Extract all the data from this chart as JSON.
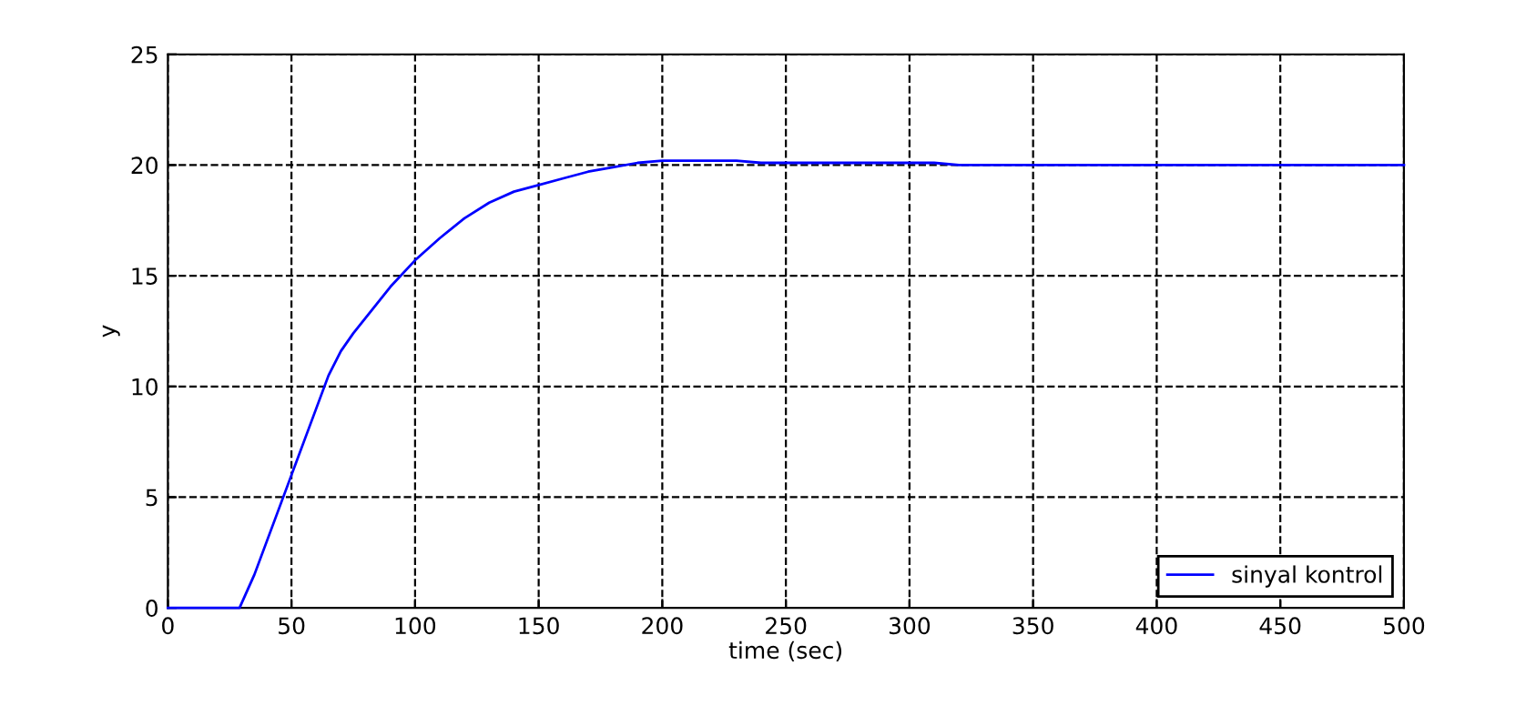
{
  "chart_data": {
    "type": "line",
    "xlabel": "time (sec)",
    "ylabel": "y",
    "x": [
      0,
      29,
      35,
      40,
      45,
      50,
      55,
      60,
      65,
      70,
      75,
      80,
      90,
      100,
      110,
      120,
      130,
      140,
      150,
      160,
      170,
      180,
      190,
      200,
      210,
      220,
      230,
      240,
      250,
      260,
      270,
      280,
      290,
      300,
      310,
      320,
      330,
      350,
      400,
      450,
      500
    ],
    "series": [
      {
        "name": "sinyal kontrol",
        "color": "#0000ff",
        "values": [
          0,
          0,
          1.5,
          3,
          4.5,
          6,
          7.5,
          9,
          10.5,
          11.6,
          12.4,
          13.1,
          14.5,
          15.7,
          16.7,
          17.6,
          18.3,
          18.8,
          19.1,
          19.4,
          19.7,
          19.9,
          20.1,
          20.2,
          20.2,
          20.2,
          20.2,
          20.1,
          20.1,
          20.1,
          20.1,
          20.1,
          20.1,
          20.1,
          20.1,
          20.0,
          20,
          20,
          20,
          20,
          20
        ]
      }
    ],
    "xlim": [
      0,
      500
    ],
    "ylim": [
      0,
      25
    ],
    "xticks": [
      0,
      50,
      100,
      150,
      200,
      250,
      300,
      350,
      400,
      450,
      500
    ],
    "yticks": [
      0,
      5,
      10,
      15,
      20,
      25
    ],
    "grid": true,
    "legend": "bottom right",
    "line_style": "solid",
    "marker": "none"
  }
}
